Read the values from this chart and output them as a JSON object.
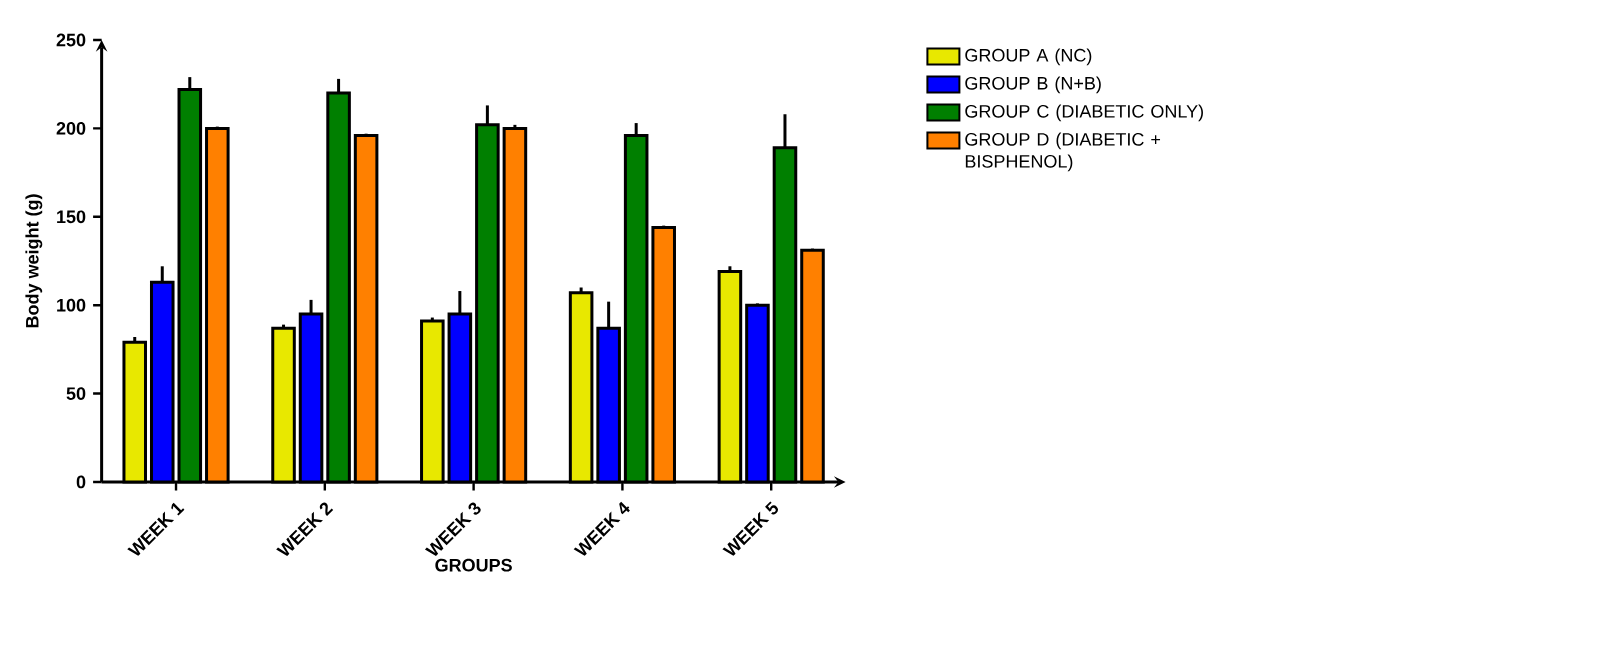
{
  "chart_data": {
    "type": "bar",
    "xlabel": "GROUPS",
    "ylabel": "Body weight (g)",
    "categories": [
      "WEEK 1",
      "WEEK 2",
      "WEEK 3",
      "WEEK 4",
      "WEEK 5"
    ],
    "series": [
      {
        "name": "GROUP A (NC)",
        "color": "#e8e800",
        "values": [
          79,
          87,
          91,
          107,
          119
        ],
        "errors": [
          [
            79,
            82
          ],
          [
            87,
            89
          ],
          [
            91,
            93
          ],
          [
            107,
            110
          ],
          [
            119,
            122
          ]
        ]
      },
      {
        "name": "GROUP B (N+B)",
        "color": "#0000ff",
        "values": [
          113,
          95,
          95,
          87,
          100
        ],
        "errors": [
          [
            113,
            122
          ],
          [
            95,
            103
          ],
          [
            95,
            108
          ],
          [
            87,
            102
          ],
          [
            100,
            101
          ]
        ]
      },
      {
        "name": "GROUP C (DIABETIC ONLY)",
        "color": "#007f00",
        "values": [
          222,
          220,
          202,
          196,
          189
        ],
        "errors": [
          [
            222,
            229
          ],
          [
            220,
            228
          ],
          [
            202,
            213
          ],
          [
            196,
            203
          ],
          [
            189,
            208
          ]
        ]
      },
      {
        "name": "GROUP D (DIABETIC + BISPHENOL)",
        "color": "#ff8000",
        "values": [
          200,
          196,
          200,
          144,
          131
        ],
        "errors": [
          [
            200,
            201
          ],
          [
            196,
            197
          ],
          [
            200,
            202
          ],
          [
            144,
            145
          ],
          [
            131,
            132
          ]
        ]
      }
    ],
    "ylim": [
      0,
      250
    ],
    "yticks": [
      0,
      50,
      100,
      150,
      200,
      250
    ],
    "legend": "right",
    "grid": false
  }
}
